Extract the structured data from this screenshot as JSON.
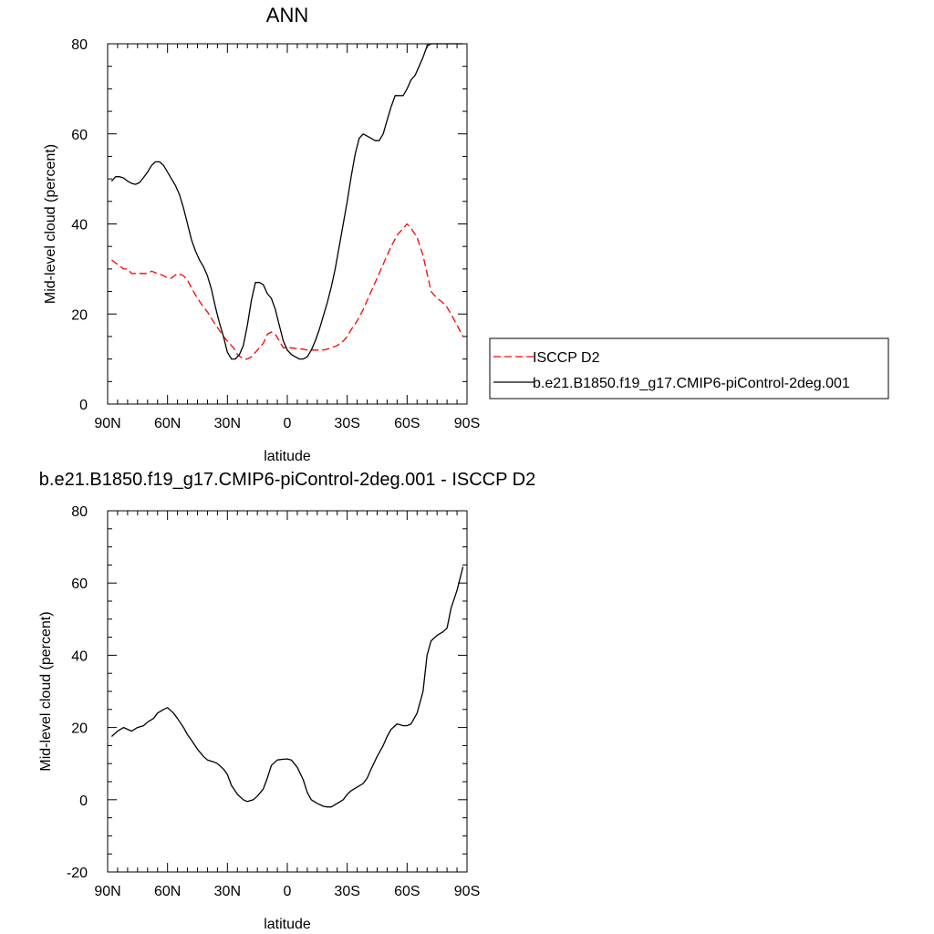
{
  "chart_data": [
    {
      "type": "line",
      "title": "ANN",
      "xlabel": "latitude",
      "ylabel": "Mid-level cloud (percent)",
      "xlim": [
        90,
        -90
      ],
      "ylim": [
        0,
        80
      ],
      "x_tick_values": [
        90,
        60,
        30,
        0,
        -30,
        -60,
        -90
      ],
      "x_tick_labels": [
        "90N",
        "60N",
        "30N",
        "0",
        "30S",
        "60S",
        "90S"
      ],
      "y_tick_values": [
        0,
        20,
        40,
        60,
        80
      ],
      "y_tick_labels": [
        "0",
        "20",
        "40",
        "60",
        "80"
      ],
      "grid": false,
      "legend_position": "right",
      "series": [
        {
          "name": "ISCCP D2",
          "color": "#ff0000",
          "dash": "dashed",
          "x": [
            88,
            85,
            82,
            80,
            78,
            75,
            72,
            70,
            68,
            65,
            62,
            60,
            58,
            55,
            52,
            50,
            47,
            45,
            42,
            40,
            38,
            35,
            32,
            30,
            27,
            25,
            22,
            20,
            18,
            15,
            12,
            10,
            8,
            6,
            4,
            2,
            0,
            -2,
            -5,
            -8,
            -10,
            -12,
            -15,
            -18,
            -20,
            -22,
            -25,
            -28,
            -30,
            -32,
            -35,
            -38,
            -40,
            -42,
            -45,
            -48,
            -50,
            -52,
            -55,
            -58,
            -60,
            -62,
            -65,
            -68,
            -70,
            -72,
            -75,
            -78,
            -80,
            -82,
            -85,
            -88
          ],
          "y": [
            32,
            31,
            30,
            30,
            29,
            29,
            29,
            29,
            29.5,
            29,
            28.5,
            28,
            28,
            29,
            28.5,
            27.5,
            25,
            23.5,
            21.5,
            20.5,
            19,
            17,
            15,
            14,
            12.5,
            11,
            10,
            10,
            10.5,
            12,
            13.5,
            15.5,
            16,
            15.5,
            14,
            12.5,
            12.5,
            12.5,
            12.3,
            12.2,
            12,
            12,
            12,
            12,
            12.2,
            12.5,
            13,
            14,
            15,
            16.5,
            18.5,
            21,
            23,
            25,
            28,
            31,
            33,
            35,
            37.5,
            39,
            40,
            39,
            37,
            33,
            29,
            25,
            23.5,
            22.5,
            21.5,
            20,
            17.5,
            15
          ]
        },
        {
          "name": "b.e21.B1850.f19_g17.CMIP6-piControl-2deg.001",
          "color": "#000000",
          "dash": "solid",
          "x": [
            88,
            86,
            84,
            82,
            80,
            78,
            76,
            74,
            72,
            70,
            68,
            66,
            64,
            62,
            60,
            58,
            56,
            54,
            52,
            50,
            48,
            46,
            44,
            42,
            40,
            38,
            36,
            34,
            32,
            30,
            28,
            26,
            24,
            22,
            20,
            18,
            16,
            14,
            12,
            10,
            8,
            6,
            4,
            2,
            0,
            -2,
            -4,
            -6,
            -8,
            -10,
            -12,
            -14,
            -16,
            -18,
            -20,
            -22,
            -24,
            -26,
            -28,
            -30,
            -32,
            -34,
            -36,
            -38,
            -40,
            -42,
            -44,
            -46,
            -48,
            -50,
            -52,
            -54,
            -56,
            -58,
            -60,
            -62,
            -64,
            -66,
            -68,
            -70,
            -72,
            -74,
            -76,
            -78,
            -80,
            -82,
            -84,
            -86,
            -88
          ],
          "y": [
            49.5,
            50.5,
            50.5,
            50.2,
            49.5,
            49,
            48.8,
            49.2,
            50.3,
            51.5,
            53,
            53.8,
            53.8,
            53,
            51.5,
            50,
            48.5,
            46.5,
            43.5,
            40,
            36.5,
            34,
            32,
            30.5,
            28.5,
            25.5,
            21.5,
            18,
            15,
            11.5,
            10,
            10,
            11,
            13,
            17.5,
            23,
            27,
            27,
            26.5,
            24.5,
            23.5,
            21,
            17.5,
            14,
            12,
            11,
            10.5,
            10,
            10,
            10.5,
            12,
            14,
            16.5,
            19.5,
            22.5,
            26,
            30,
            35,
            40,
            45,
            50.5,
            55.5,
            59,
            60,
            59.5,
            59,
            58.5,
            58.5,
            60,
            63,
            66,
            68.5,
            68.5,
            68.5,
            70,
            72,
            73,
            75,
            77,
            79.5,
            80,
            80,
            80,
            80,
            80,
            80,
            80,
            80,
            80
          ]
        }
      ]
    },
    {
      "type": "line",
      "title": "b.e21.B1850.f19_g17.CMIP6-piControl-2deg.001 - ISCCP D2",
      "xlabel": "latitude",
      "ylabel": "Mid-level cloud (percent)",
      "xlim": [
        90,
        -90
      ],
      "ylim": [
        -20,
        80
      ],
      "x_tick_values": [
        90,
        60,
        30,
        0,
        -30,
        -60,
        -90
      ],
      "x_tick_labels": [
        "90N",
        "60N",
        "30N",
        "0",
        "30S",
        "60S",
        "90S"
      ],
      "y_tick_values": [
        -20,
        0,
        20,
        40,
        60,
        80
      ],
      "y_tick_labels": [
        "-20",
        "0",
        "20",
        "40",
        "60",
        "80"
      ],
      "grid": false,
      "series": [
        {
          "color": "#000000",
          "dash": "solid",
          "x": [
            88,
            85,
            82,
            80,
            78,
            75,
            72,
            70,
            67,
            65,
            62,
            60,
            57,
            55,
            52,
            50,
            48,
            45,
            42,
            40,
            37,
            35,
            32,
            30,
            28,
            25,
            22,
            20,
            17,
            15,
            12,
            10,
            8,
            5,
            2,
            0,
            -2,
            -5,
            -8,
            -10,
            -12,
            -15,
            -18,
            -20,
            -22,
            -25,
            -28,
            -30,
            -32,
            -35,
            -38,
            -40,
            -42,
            -45,
            -48,
            -50,
            -52,
            -55,
            -58,
            -60,
            -62,
            -65,
            -68,
            -70,
            -72,
            -75,
            -78,
            -80,
            -82,
            -85,
            -88
          ],
          "y": [
            17.5,
            19,
            20,
            19.5,
            19,
            20,
            20.5,
            21.5,
            22.5,
            24,
            25,
            25.5,
            24,
            22.5,
            20,
            18,
            16.5,
            14,
            12,
            11,
            10.5,
            10,
            8.5,
            7,
            4,
            1.5,
            0,
            -0.5,
            0,
            1,
            3,
            6,
            9.5,
            11,
            11.2,
            11.3,
            11,
            9,
            5.5,
            2,
            0,
            -1,
            -1.8,
            -2,
            -2,
            -1,
            0,
            1.5,
            2.5,
            3.5,
            4.5,
            6,
            8.5,
            12,
            15,
            17.5,
            19.5,
            21,
            20.5,
            20.5,
            21,
            24,
            30,
            40,
            44,
            45.5,
            46.5,
            47.5,
            53,
            58,
            64.5
          ]
        }
      ]
    }
  ]
}
